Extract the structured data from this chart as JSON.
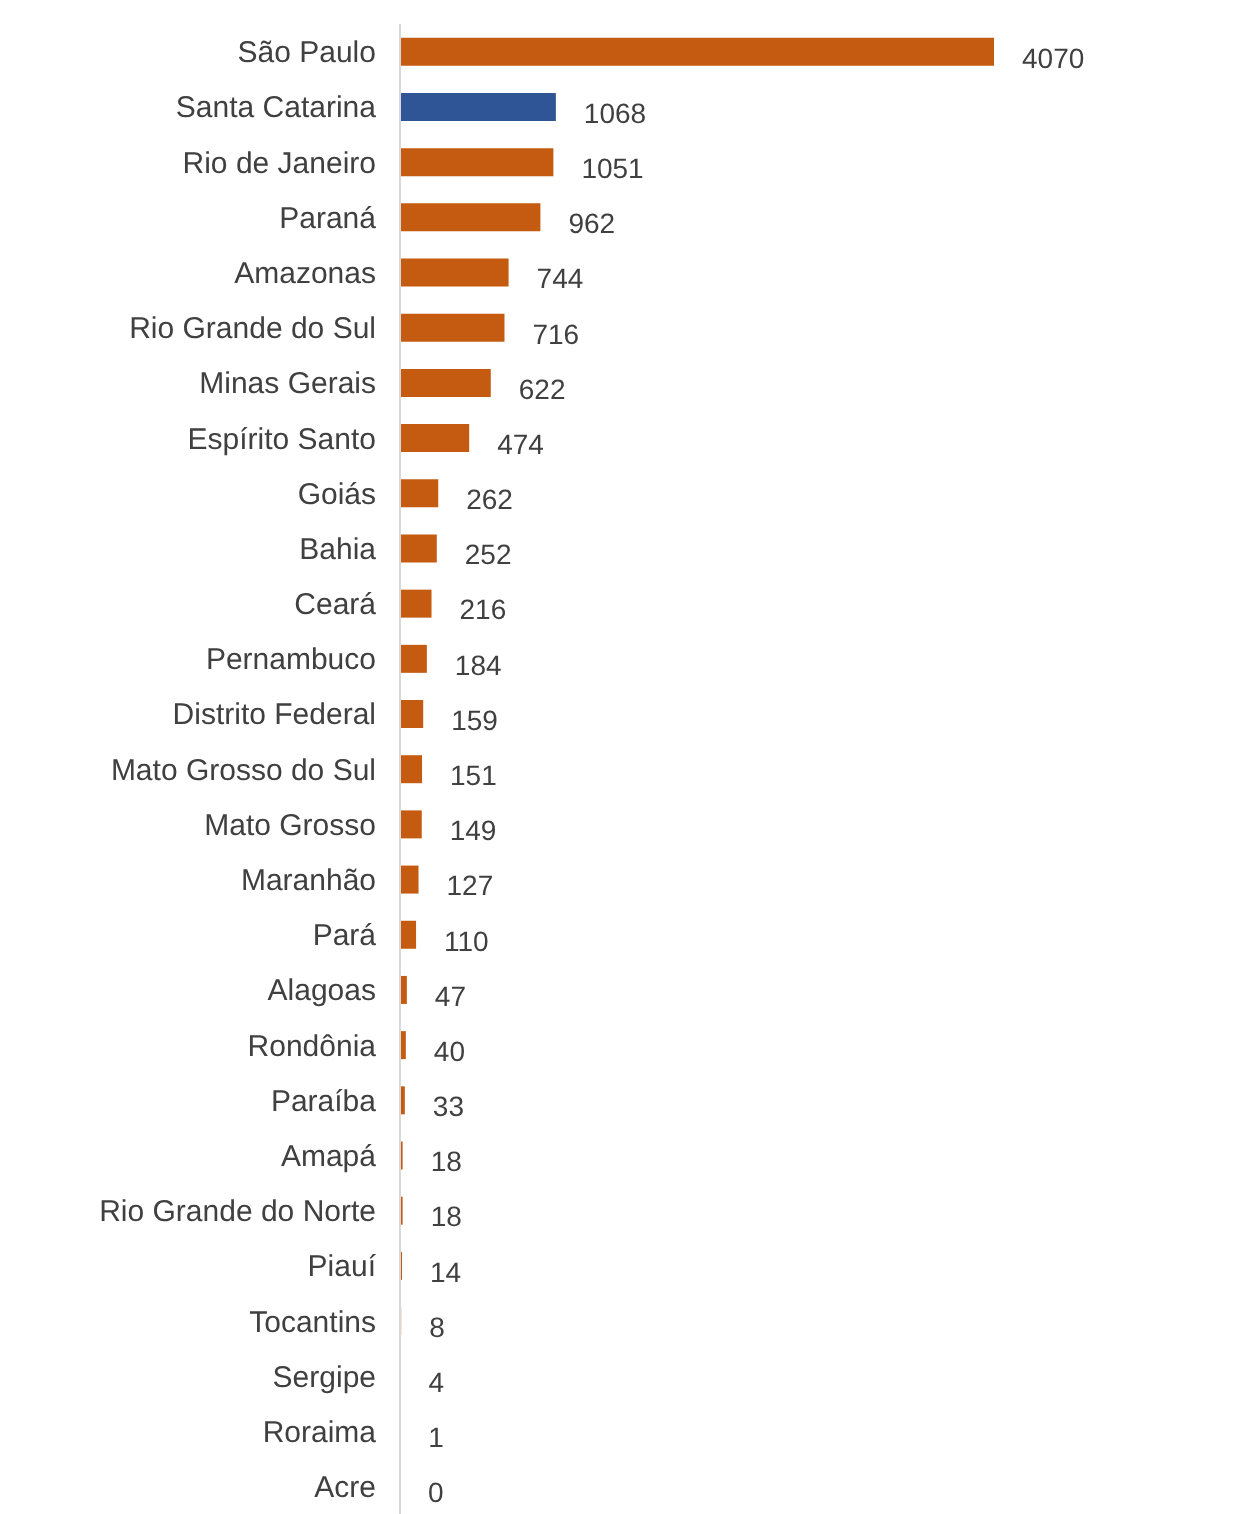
{
  "chart_data": {
    "type": "bar",
    "orientation": "horizontal",
    "categories": [
      "São Paulo",
      "Santa Catarina",
      "Rio de Janeiro",
      "Paraná",
      "Amazonas",
      "Rio Grande do Sul",
      "Minas Gerais",
      "Espírito Santo",
      "Goiás",
      "Bahia",
      "Ceará",
      "Pernambuco",
      "Distrito Federal",
      "Mato Grosso do Sul",
      "Mato Grosso",
      "Maranhão",
      "Pará",
      "Alagoas",
      "Rondônia",
      "Paraíba",
      "Amapá",
      "Rio Grande do Norte",
      "Piauí",
      "Tocantins",
      "Sergipe",
      "Roraima",
      "Acre"
    ],
    "values": [
      4070,
      1068,
      1051,
      962,
      744,
      716,
      622,
      474,
      262,
      252,
      216,
      184,
      159,
      151,
      149,
      127,
      110,
      47,
      40,
      33,
      18,
      18,
      14,
      8,
      4,
      1,
      0
    ],
    "colors": [
      "#c55a11",
      "#2f5597",
      "#c55a11",
      "#c55a11",
      "#c55a11",
      "#c55a11",
      "#c55a11",
      "#c55a11",
      "#c55a11",
      "#c55a11",
      "#c55a11",
      "#c55a11",
      "#c55a11",
      "#c55a11",
      "#c55a11",
      "#c55a11",
      "#c55a11",
      "#c55a11",
      "#c55a11",
      "#c55a11",
      "#c55a11",
      "#c55a11",
      "#c55a11",
      "#c55a11",
      "#c55a11",
      "#c55a11",
      "#c55a11"
    ],
    "tick_labels": "y",
    "data_labels": true
  }
}
